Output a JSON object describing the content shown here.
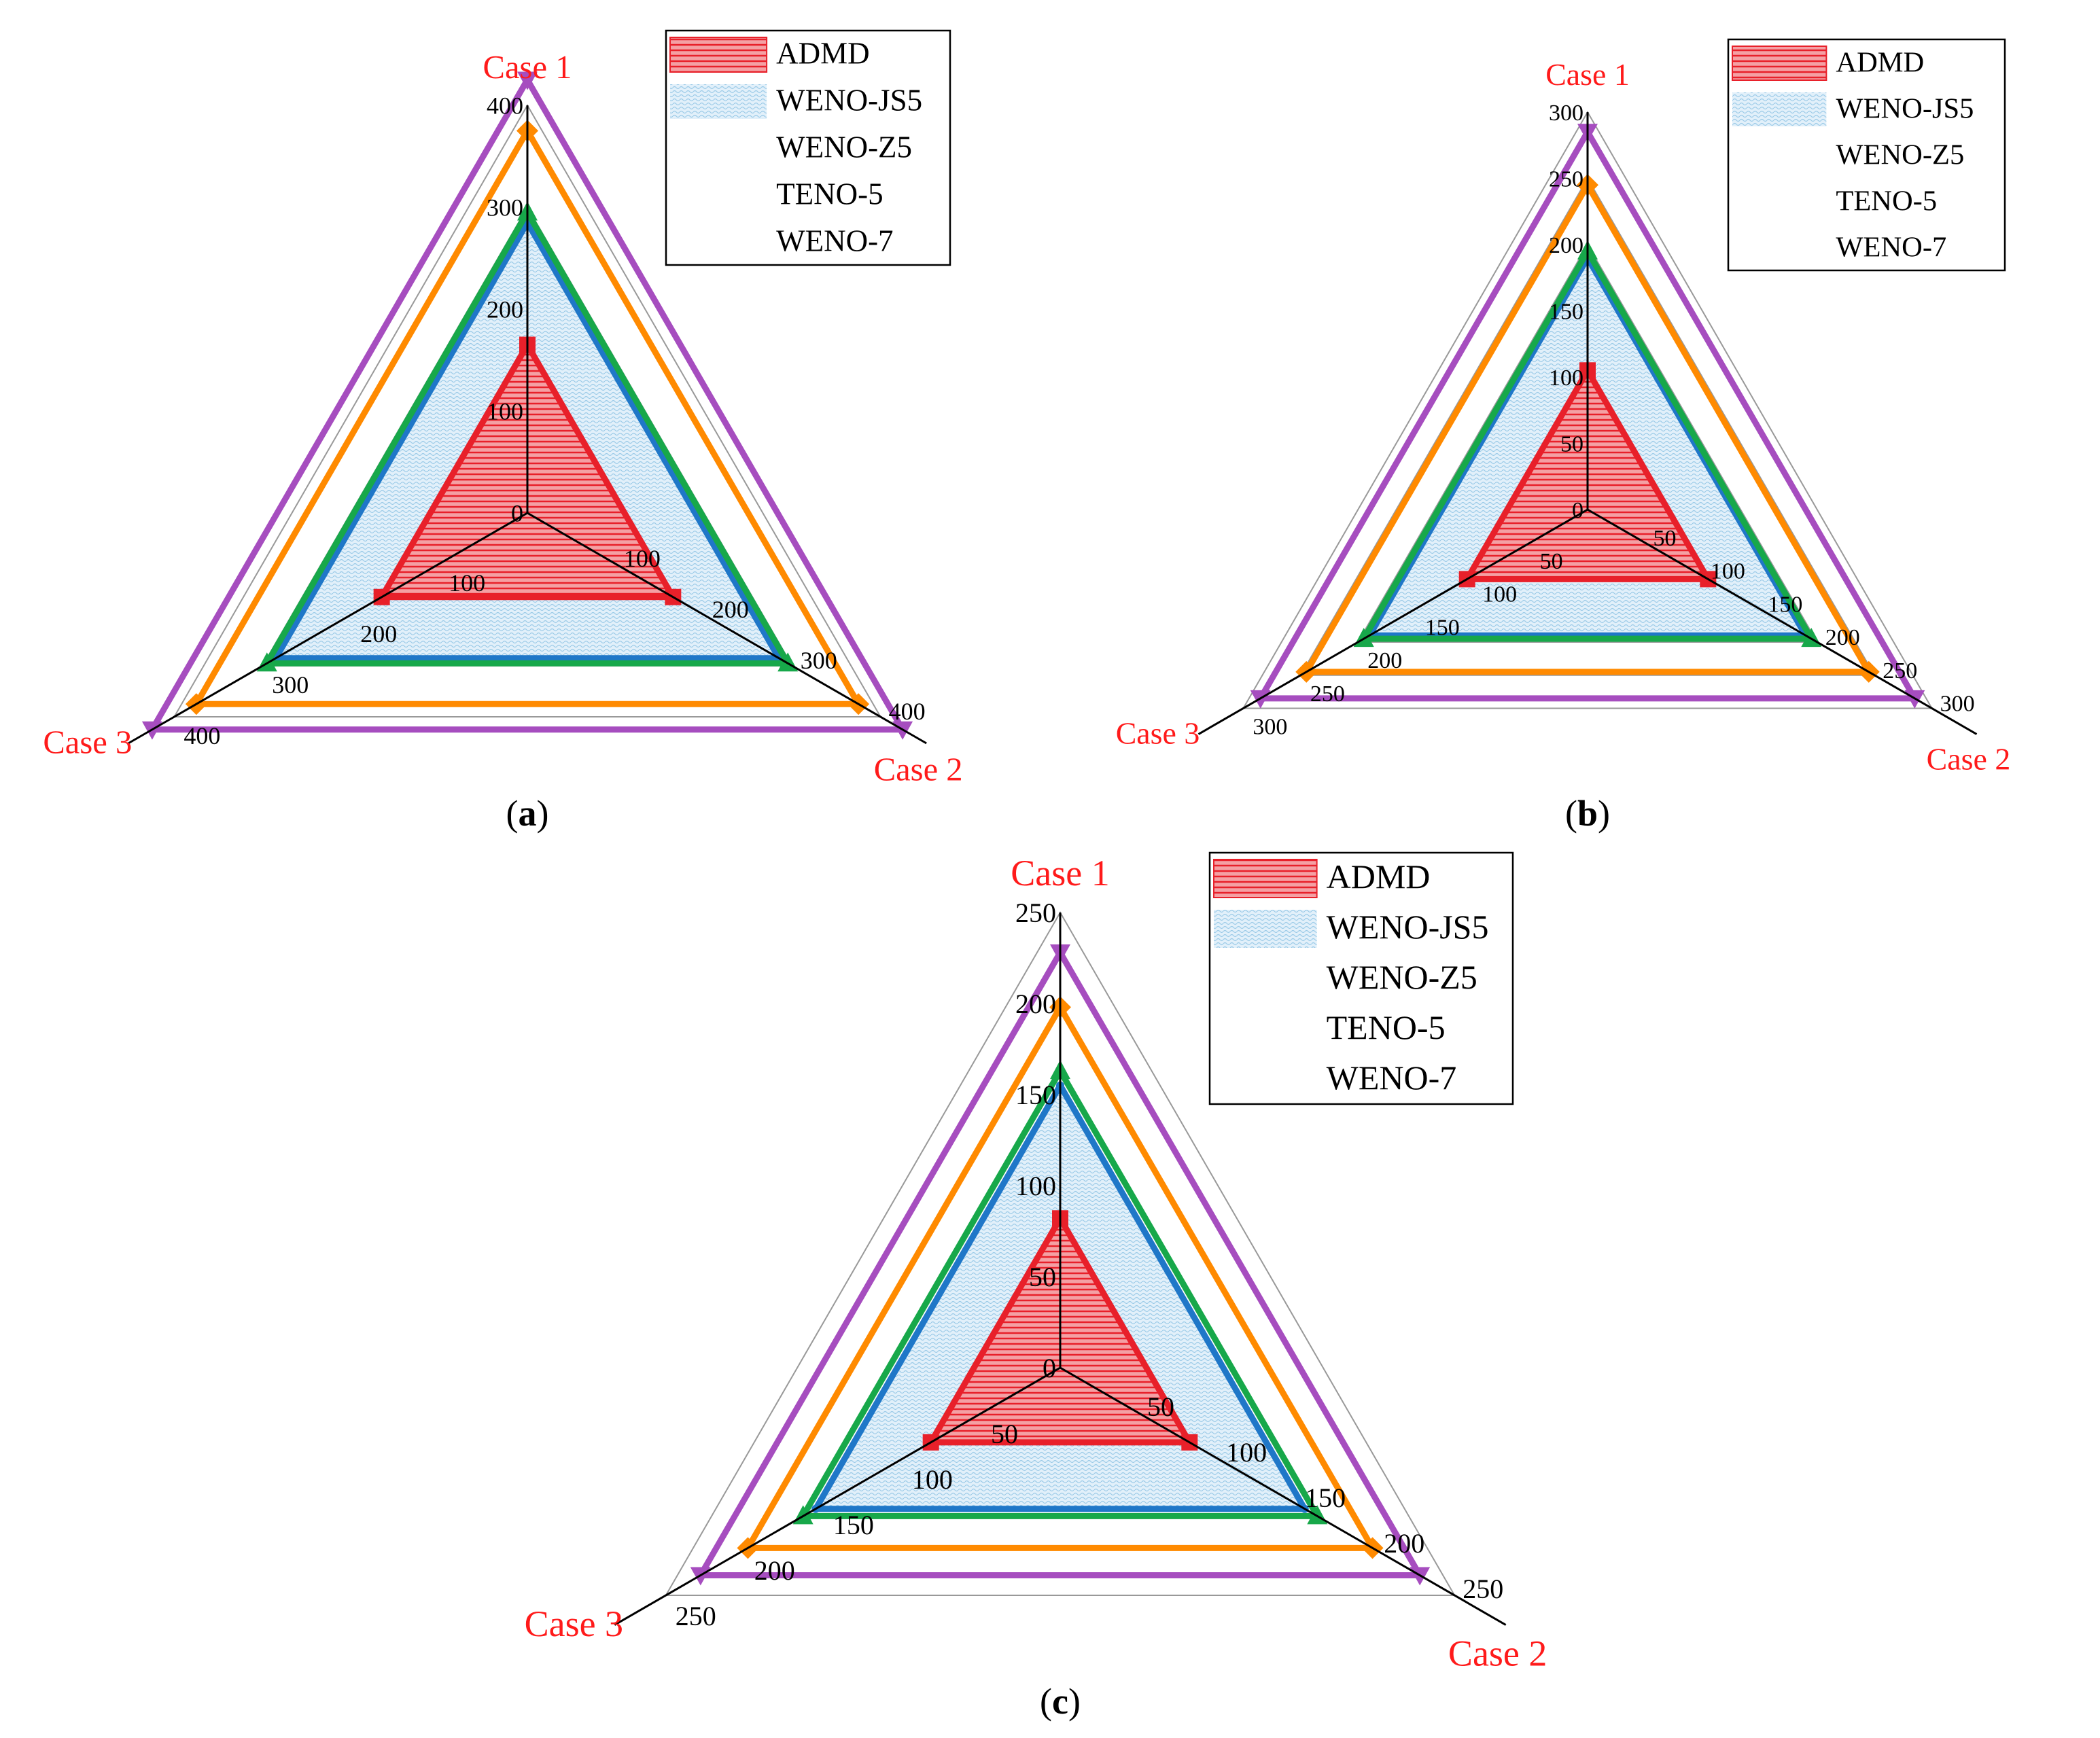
{
  "colors": {
    "ADMD": "#e8202a",
    "WENO-JS5": "#1f77c8",
    "WENO-Z5": "#17a84a",
    "TENO-5": "#ff8a00",
    "WENO-7": "#a64dbf",
    "case_label": "#ff1a1a",
    "axis": "#000000",
    "grid": "#999999"
  },
  "chart_data": [
    {
      "type": "radar",
      "panel": "a",
      "caption_letter": "a",
      "axes": [
        "Case 1",
        "Case 2",
        "Case 3"
      ],
      "range": [
        0,
        400
      ],
      "ticks": [
        0,
        100,
        200,
        300,
        400
      ],
      "legend": "top-right",
      "series": [
        {
          "name": "ADMD",
          "values": [
            165,
            165,
            165
          ]
        },
        {
          "name": "WENO-JS5",
          "values": [
            285,
            285,
            285
          ]
        },
        {
          "name": "WENO-Z5",
          "values": [
            295,
            295,
            295
          ]
        },
        {
          "name": "TENO-5",
          "values": [
            375,
            375,
            375
          ]
        },
        {
          "name": "WENO-7",
          "values": [
            425,
            425,
            425
          ]
        }
      ]
    },
    {
      "type": "radar",
      "panel": "b",
      "caption_letter": "b",
      "axes": [
        "Case 1",
        "Case 2",
        "Case 3"
      ],
      "range": [
        0,
        300
      ],
      "ticks": [
        0,
        50,
        100,
        150,
        200,
        250,
        300
      ],
      "legend": "top-right",
      "series": [
        {
          "name": "ADMD",
          "values": [
            105,
            105,
            105
          ]
        },
        {
          "name": "WENO-JS5",
          "values": [
            190,
            190,
            190
          ]
        },
        {
          "name": "WENO-Z5",
          "values": [
            195,
            195,
            195
          ]
        },
        {
          "name": "TENO-5",
          "values": [
            245,
            245,
            245
          ]
        },
        {
          "name": "WENO-7",
          "values": [
            285,
            285,
            285
          ]
        }
      ]
    },
    {
      "type": "radar",
      "panel": "c",
      "caption_letter": "c",
      "axes": [
        "Case 1",
        "Case 2",
        "Case 3"
      ],
      "range": [
        0,
        250
      ],
      "ticks": [
        0,
        50,
        100,
        150,
        200,
        250
      ],
      "legend": "top-right",
      "series": [
        {
          "name": "ADMD",
          "values": [
            82,
            82,
            82
          ]
        },
        {
          "name": "WENO-JS5",
          "values": [
            155,
            155,
            155
          ]
        },
        {
          "name": "WENO-Z5",
          "values": [
            163,
            163,
            163
          ]
        },
        {
          "name": "TENO-5",
          "values": [
            198,
            198,
            198
          ]
        },
        {
          "name": "WENO-7",
          "values": [
            228,
            228,
            228
          ]
        }
      ]
    }
  ]
}
